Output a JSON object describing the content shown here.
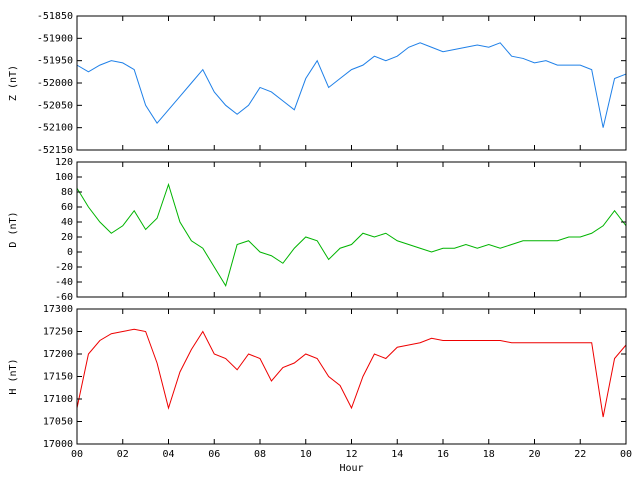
{
  "chart_data": [
    {
      "type": "line",
      "y_label": "Z (nT)",
      "ylim": [
        -52150,
        -51850
      ],
      "yticks": [
        -52150,
        -52100,
        -52050,
        -52000,
        -51950,
        -51900,
        -51850
      ],
      "xlim": [
        0,
        24
      ],
      "x": [
        0,
        0.5,
        1,
        1.5,
        2,
        2.5,
        3,
        3.5,
        4,
        4.5,
        5,
        5.5,
        6,
        6.5,
        7,
        7.5,
        8,
        8.5,
        9,
        9.5,
        10,
        10.5,
        11,
        11.5,
        12,
        12.5,
        13,
        13.5,
        14,
        14.5,
        15,
        15.5,
        16,
        16.5,
        17,
        17.5,
        18,
        18.5,
        19,
        19.5,
        20,
        20.5,
        21,
        21.5,
        22,
        22.5,
        23,
        23.5,
        24
      ],
      "series": [
        {
          "color": "#1f80e8",
          "values": [
            -51960,
            -51975,
            -51960,
            -51950,
            -51955,
            -51970,
            -52050,
            -52090,
            -52060,
            -52030,
            -52000,
            -51970,
            -52020,
            -52050,
            -52070,
            -52050,
            -52010,
            -52020,
            -52040,
            -52060,
            -51990,
            -51950,
            -52010,
            -51990,
            -51970,
            -51960,
            -51940,
            -51950,
            -51940,
            -51920,
            -51910,
            -51920,
            -51930,
            -51925,
            -51920,
            -51915,
            -51920,
            -51910,
            -51940,
            -51945,
            -51955,
            -51950,
            -51960,
            -51960,
            -51960,
            -51970,
            -52100,
            -51990,
            -51980
          ]
        }
      ]
    },
    {
      "type": "line",
      "y_label": "D (nT)",
      "ylim": [
        -60,
        120
      ],
      "yticks": [
        -60,
        -40,
        -20,
        0,
        20,
        40,
        60,
        80,
        100,
        120
      ],
      "xlim": [
        0,
        24
      ],
      "x": [
        0,
        0.5,
        1,
        1.5,
        2,
        2.5,
        3,
        3.5,
        4,
        4.5,
        5,
        5.5,
        6,
        6.5,
        7,
        7.5,
        8,
        8.5,
        9,
        9.5,
        10,
        10.5,
        11,
        11.5,
        12,
        12.5,
        13,
        13.5,
        14,
        14.5,
        15,
        15.5,
        16,
        16.5,
        17,
        17.5,
        18,
        18.5,
        19,
        19.5,
        20,
        20.5,
        21,
        21.5,
        22,
        22.5,
        23,
        23.5,
        24
      ],
      "series": [
        {
          "color": "#00b400",
          "values": [
            85,
            60,
            40,
            25,
            35,
            55,
            30,
            45,
            90,
            40,
            15,
            5,
            -20,
            -45,
            10,
            15,
            0,
            -5,
            -15,
            5,
            20,
            15,
            -10,
            5,
            10,
            25,
            20,
            25,
            15,
            10,
            5,
            0,
            5,
            5,
            10,
            5,
            10,
            5,
            10,
            15,
            15,
            15,
            15,
            20,
            20,
            25,
            35,
            55,
            35
          ]
        }
      ]
    },
    {
      "type": "line",
      "y_label": "H (nT)",
      "x_label": "Hour",
      "ylim": [
        17000,
        17300
      ],
      "yticks": [
        17000,
        17050,
        17100,
        17150,
        17200,
        17250,
        17300
      ],
      "xlim": [
        0,
        24
      ],
      "xticks": [
        {
          "value": 0,
          "label": "00"
        },
        {
          "value": 2,
          "label": "02"
        },
        {
          "value": 4,
          "label": "04"
        },
        {
          "value": 6,
          "label": "06"
        },
        {
          "value": 8,
          "label": "08"
        },
        10,
        12,
        14,
        16,
        18,
        20,
        22,
        {
          "value": 24,
          "label": "00"
        }
      ],
      "x": [
        0,
        0.5,
        1,
        1.5,
        2,
        2.5,
        3,
        3.5,
        4,
        4.5,
        5,
        5.5,
        6,
        6.5,
        7,
        7.5,
        8,
        8.5,
        9,
        9.5,
        10,
        10.5,
        11,
        11.5,
        12,
        12.5,
        13,
        13.5,
        14,
        14.5,
        15,
        15.5,
        16,
        16.5,
        17,
        17.5,
        18,
        18.5,
        19,
        19.5,
        20,
        20.5,
        21,
        21.5,
        22,
        22.5,
        23,
        23.5,
        24
      ],
      "series": [
        {
          "color": "#ee0000",
          "values": [
            17080,
            17200,
            17230,
            17245,
            17250,
            17255,
            17250,
            17180,
            17080,
            17160,
            17210,
            17250,
            17200,
            17190,
            17165,
            17200,
            17190,
            17140,
            17170,
            17180,
            17200,
            17190,
            17150,
            17130,
            17080,
            17150,
            17200,
            17190,
            17215,
            17220,
            17225,
            17235,
            17230,
            17230,
            17230,
            17230,
            17230,
            17230,
            17225,
            17225,
            17225,
            17225,
            17225,
            17225,
            17225,
            17225,
            17060,
            17190,
            17220
          ]
        }
      ]
    }
  ]
}
